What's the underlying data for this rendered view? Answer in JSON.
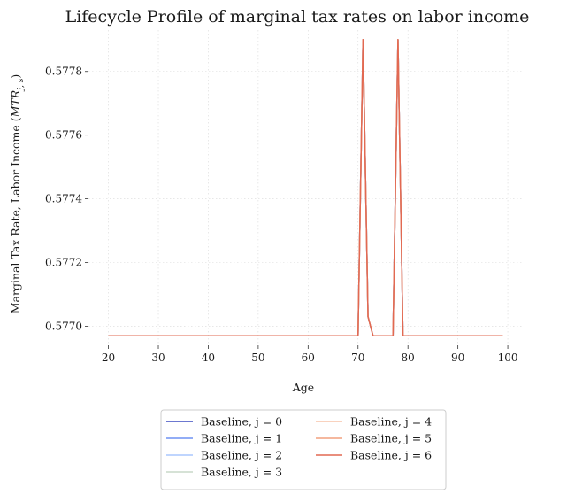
{
  "chart_data": {
    "type": "line",
    "title": "Lifecycle Profile of marginal tax rates on labor income",
    "xlabel": "Age",
    "ylabel": "Marginal Tax Rate, Labor Income ($MTR\\bar{x}_{j,s}$)",
    "ylabel_prefix": "Marginal Tax Rate, Labor Income (",
    "ylabel_math": "MTR",
    "ylabel_sub": "j, s",
    "ylabel_suffix": ")",
    "xlim": [
      16,
      103
    ],
    "ylim": [
      0.57694,
      0.57793
    ],
    "xticks": [
      20,
      30,
      40,
      50,
      60,
      70,
      80,
      90,
      100
    ],
    "xtick_labels": [
      "20",
      "30",
      "40",
      "50",
      "60",
      "70",
      "80",
      "90",
      "100"
    ],
    "yticks": [
      0.577,
      0.5772,
      0.5774,
      0.5776,
      0.5778
    ],
    "ytick_labels": [
      "0.5770",
      "0.5772",
      "0.5774",
      "0.5776",
      "0.5778"
    ],
    "grid": true,
    "legend_placement": "bottom-center, outside, 2 columns",
    "series": [
      {
        "name": "Baseline, j = 0",
        "color": "#3b4cc0",
        "x": [
          20,
          70,
          71,
          72,
          73,
          77,
          78,
          79,
          99
        ],
        "y": [
          0.57697,
          0.57697,
          0.5779,
          0.57703,
          0.57697,
          0.57697,
          0.5779,
          0.57697,
          0.57697
        ]
      },
      {
        "name": "Baseline, j = 1",
        "color": "#6f92f3",
        "x": [
          20,
          70,
          71,
          72,
          73,
          77,
          78,
          79,
          99
        ],
        "y": [
          0.57697,
          0.57697,
          0.5779,
          0.57703,
          0.57697,
          0.57697,
          0.5779,
          0.57697,
          0.57697
        ]
      },
      {
        "name": "Baseline, j = 2",
        "color": "#aac7fd",
        "x": [
          20,
          70,
          71,
          72,
          73,
          77,
          78,
          79,
          99
        ],
        "y": [
          0.57697,
          0.57697,
          0.5779,
          0.57703,
          0.57697,
          0.57697,
          0.5779,
          0.57697,
          0.57697
        ]
      },
      {
        "name": "Baseline, j = 3",
        "color": "#c8d9c8",
        "x": [
          20,
          70,
          71,
          72,
          73,
          77,
          78,
          79,
          99
        ],
        "y": [
          0.57697,
          0.57697,
          0.5779,
          0.57703,
          0.57697,
          0.57697,
          0.5779,
          0.57697,
          0.57697
        ]
      },
      {
        "name": "Baseline, j = 4",
        "color": "#f7c4a8",
        "x": [
          20,
          70,
          71,
          72,
          73,
          77,
          78,
          79,
          99
        ],
        "y": [
          0.57697,
          0.57697,
          0.5779,
          0.57703,
          0.57697,
          0.57697,
          0.5779,
          0.57697,
          0.57697
        ]
      },
      {
        "name": "Baseline, j = 5",
        "color": "#f2a17f",
        "x": [
          20,
          70,
          71,
          72,
          73,
          77,
          78,
          79,
          99
        ],
        "y": [
          0.57697,
          0.57697,
          0.5779,
          0.57703,
          0.57697,
          0.57697,
          0.5779,
          0.57697,
          0.57697
        ]
      },
      {
        "name": "Baseline, j = 6",
        "color": "#e26952",
        "x": [
          20,
          70,
          71,
          72,
          73,
          77,
          78,
          79,
          99
        ],
        "y": [
          0.57697,
          0.57697,
          0.5779,
          0.57703,
          0.57697,
          0.57697,
          0.5779,
          0.57697,
          0.57697
        ]
      }
    ]
  }
}
